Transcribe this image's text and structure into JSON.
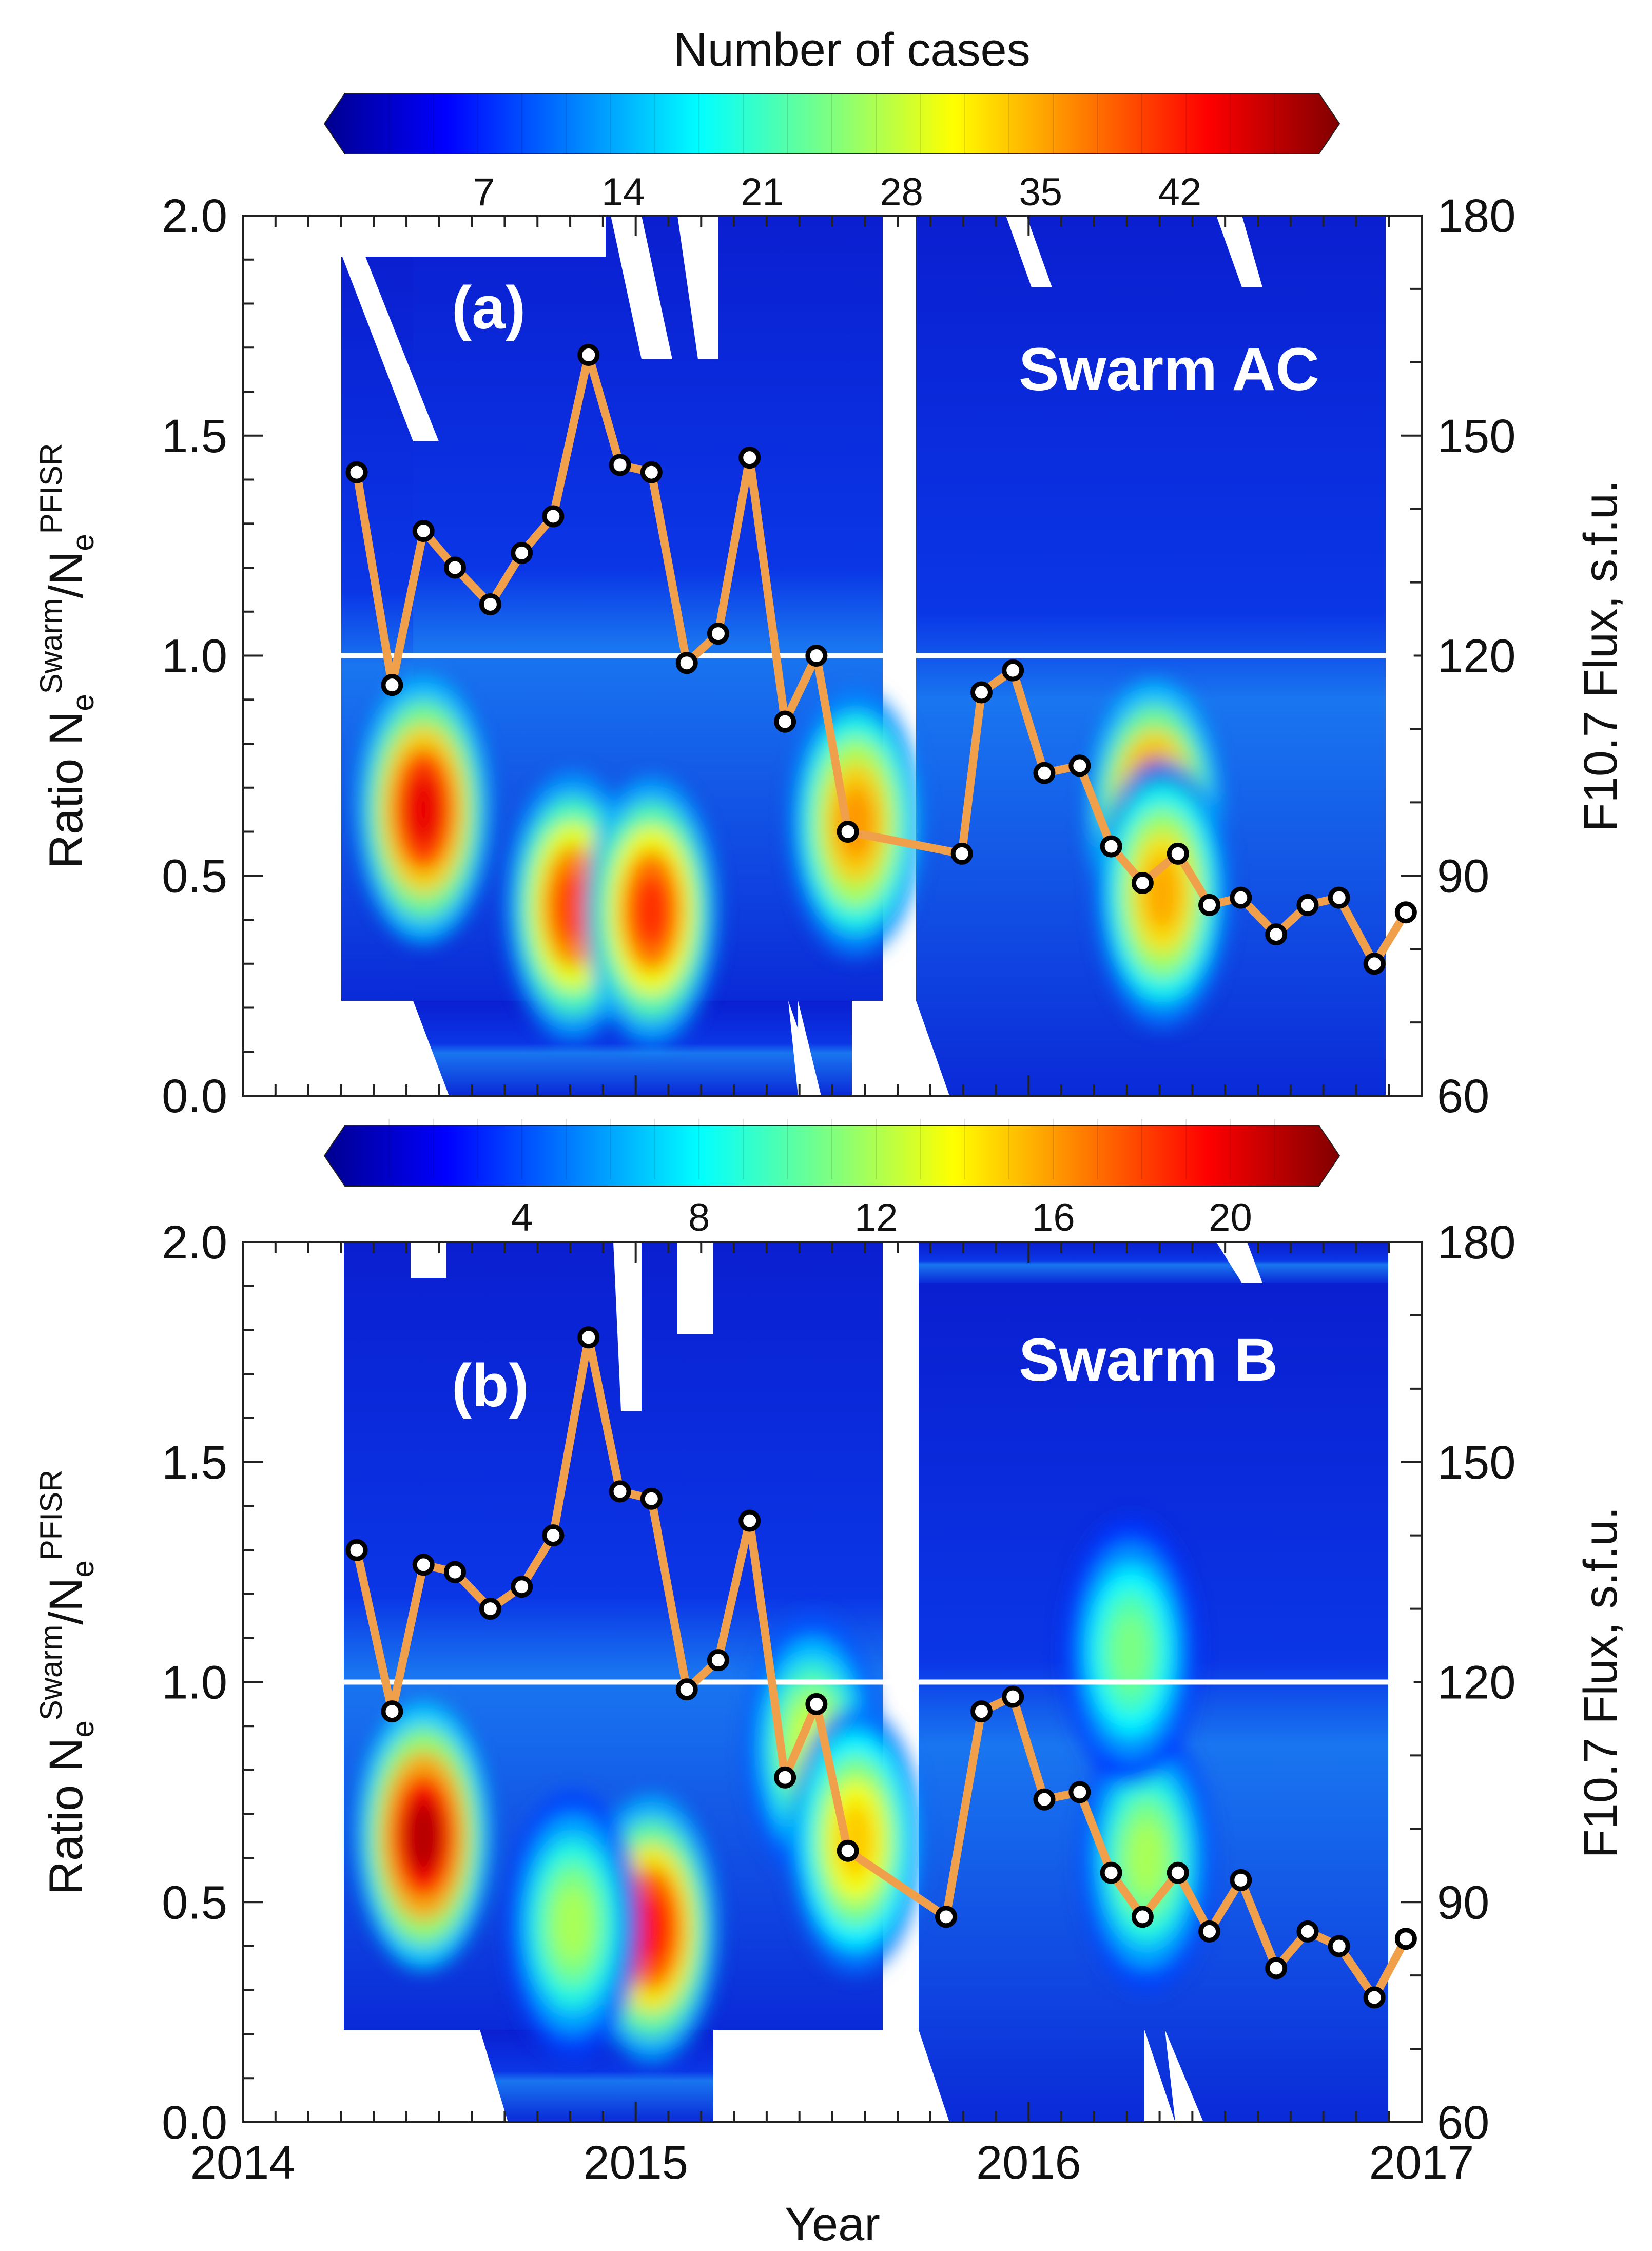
{
  "colorbar_title": "Number of cases",
  "x_axis": {
    "label": "Year",
    "ticks": [
      "2014",
      "2015",
      "2016",
      "2017"
    ]
  },
  "left_axis": {
    "label": "Ratio",
    "ticks": [
      "0.0",
      "0.5",
      "1.0",
      "1.5",
      "2.0"
    ]
  },
  "right_axis": {
    "label": "F10.7 Flux, s.f.u.",
    "ticks": [
      "60",
      "90",
      "120",
      "150",
      "180"
    ]
  },
  "chart_data": [
    {
      "type": "heatmap",
      "panel_label": "(a)",
      "satellite": "Swarm AC",
      "colorbar_ticks": [
        "7",
        "14",
        "21",
        "28",
        "35",
        "42"
      ],
      "colorbar_range": [
        0,
        49
      ],
      "xlim": [
        2014,
        2017
      ],
      "ylim": [
        0,
        2
      ],
      "y2lim": [
        60,
        180
      ],
      "reference_line": 1.0,
      "series": [
        {
          "kind": "line",
          "axis": "right",
          "x": [
            2014.29,
            2014.38,
            2014.46,
            2014.54,
            2014.63,
            2014.71,
            2014.79,
            2014.88,
            2014.96,
            2015.04,
            2015.13,
            2015.21,
            2015.29,
            2015.38,
            2015.46,
            2015.54,
            2015.83,
            2015.88,
            2015.96,
            2016.04,
            2016.13,
            2016.21,
            2016.29,
            2016.38,
            2016.46,
            2016.54,
            2016.63,
            2016.71,
            2016.79,
            2016.88,
            2016.96
          ],
          "y": [
            145,
            116,
            137,
            132,
            127,
            134,
            139,
            161,
            146,
            145,
            119,
            123,
            147,
            111,
            120,
            96,
            93,
            115,
            118,
            104,
            105,
            94,
            89,
            93,
            86,
            87,
            82,
            86,
            87,
            78,
            85
          ]
        }
      ],
      "hotspots": [
        {
          "x": 2014.46,
          "y": 0.65,
          "value": 44
        },
        {
          "x": 2014.84,
          "y": 0.43,
          "value": 40
        },
        {
          "x": 2015.04,
          "y": 0.42,
          "value": 41
        },
        {
          "x": 2015.56,
          "y": 0.62,
          "value": 36
        },
        {
          "x": 2016.32,
          "y": 0.64,
          "value": 44
        },
        {
          "x": 2016.34,
          "y": 0.46,
          "value": 35
        }
      ]
    },
    {
      "type": "heatmap",
      "panel_label": "(b)",
      "satellite": "Swarm B",
      "colorbar_ticks": [
        "4",
        "8",
        "12",
        "16",
        "20"
      ],
      "colorbar_range": [
        0,
        22
      ],
      "xlim": [
        2014,
        2017
      ],
      "ylim": [
        0,
        2
      ],
      "y2lim": [
        60,
        180
      ],
      "reference_line": 1.0,
      "series": [
        {
          "kind": "line",
          "axis": "right",
          "x": [
            2014.29,
            2014.38,
            2014.46,
            2014.54,
            2014.63,
            2014.71,
            2014.79,
            2014.88,
            2014.96,
            2015.04,
            2015.13,
            2015.21,
            2015.29,
            2015.38,
            2015.46,
            2015.54,
            2015.79,
            2015.88,
            2015.96,
            2016.04,
            2016.13,
            2016.21,
            2016.29,
            2016.38,
            2016.46,
            2016.54,
            2016.63,
            2016.71,
            2016.79,
            2016.88,
            2016.96
          ],
          "y": [
            138,
            116,
            136,
            135,
            130,
            133,
            140,
            167,
            146,
            145,
            119,
            123,
            142,
            107,
            117,
            97,
            88,
            116,
            118,
            104,
            105,
            94,
            88,
            94,
            86,
            93,
            81,
            86,
            84,
            77,
            85
          ]
        }
      ],
      "hotspots": [
        {
          "x": 2014.46,
          "y": 0.65,
          "value": 21
        },
        {
          "x": 2015.04,
          "y": 0.44,
          "value": 19
        },
        {
          "x": 2014.84,
          "y": 0.45,
          "value": 12
        },
        {
          "x": 2015.45,
          "y": 0.85,
          "value": 13
        },
        {
          "x": 2015.56,
          "y": 0.64,
          "value": 15
        },
        {
          "x": 2016.3,
          "y": 0.6,
          "value": 12
        },
        {
          "x": 2016.26,
          "y": 1.07,
          "value": 11
        }
      ]
    }
  ]
}
